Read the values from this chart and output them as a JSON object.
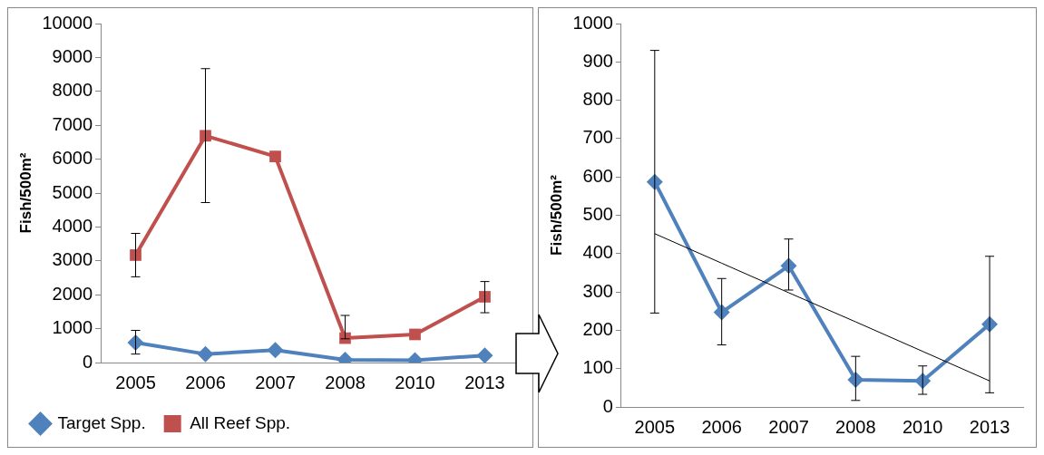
{
  "chart_data": [
    {
      "type": "line",
      "ylabel": "Fish/500m²",
      "categories": [
        "2005",
        "2006",
        "2007",
        "2008",
        "2010",
        "2013"
      ],
      "ylim": [
        0,
        10000
      ],
      "yticks": [
        0,
        1000,
        2000,
        3000,
        4000,
        5000,
        6000,
        7000,
        8000,
        9000,
        10000
      ],
      "grid": false,
      "legend": "bottom",
      "line_style": "solid",
      "series": [
        {
          "name": "Target Spp.",
          "color": "#4f81bd",
          "marker": "diamond",
          "values": [
            590,
            250,
            370,
            80,
            70,
            210
          ],
          "errors": [
            [
              250,
              950
            ],
            null,
            null,
            null,
            null,
            null
          ]
        },
        {
          "name": "All Reef Spp.",
          "color": "#c0504d",
          "marker": "square",
          "values": [
            3170,
            6690,
            6080,
            720,
            830,
            1940
          ],
          "errors": [
            [
              2530,
              3810
            ],
            [
              4720,
              8670
            ],
            null,
            [
              700,
              1390
            ],
            null,
            [
              1470,
              2390
            ]
          ]
        }
      ]
    },
    {
      "type": "line",
      "ylabel": "Fish/500m²",
      "categories": [
        "2005",
        "2006",
        "2007",
        "2008",
        "2010",
        "2013"
      ],
      "ylim": [
        0,
        1000
      ],
      "yticks": [
        0,
        100,
        200,
        300,
        400,
        500,
        600,
        700,
        800,
        900,
        1000
      ],
      "grid": false,
      "legend": false,
      "line_style": "solid",
      "series": [
        {
          "color": "#4f81bd",
          "marker": "diamond",
          "values": [
            587,
            247,
            368,
            71,
            68,
            216
          ],
          "errors": [
            [
              245,
              930
            ],
            [
              162,
              335
            ],
            [
              305,
              438
            ],
            [
              17,
              132
            ],
            [
              33,
              107
            ],
            [
              37,
              393
            ]
          ]
        },
        {
          "type": "line",
          "values": [
            452,
            375,
            298,
            222,
            145,
            68
          ],
          "color": "#000000",
          "marker": "none"
        }
      ]
    }
  ]
}
